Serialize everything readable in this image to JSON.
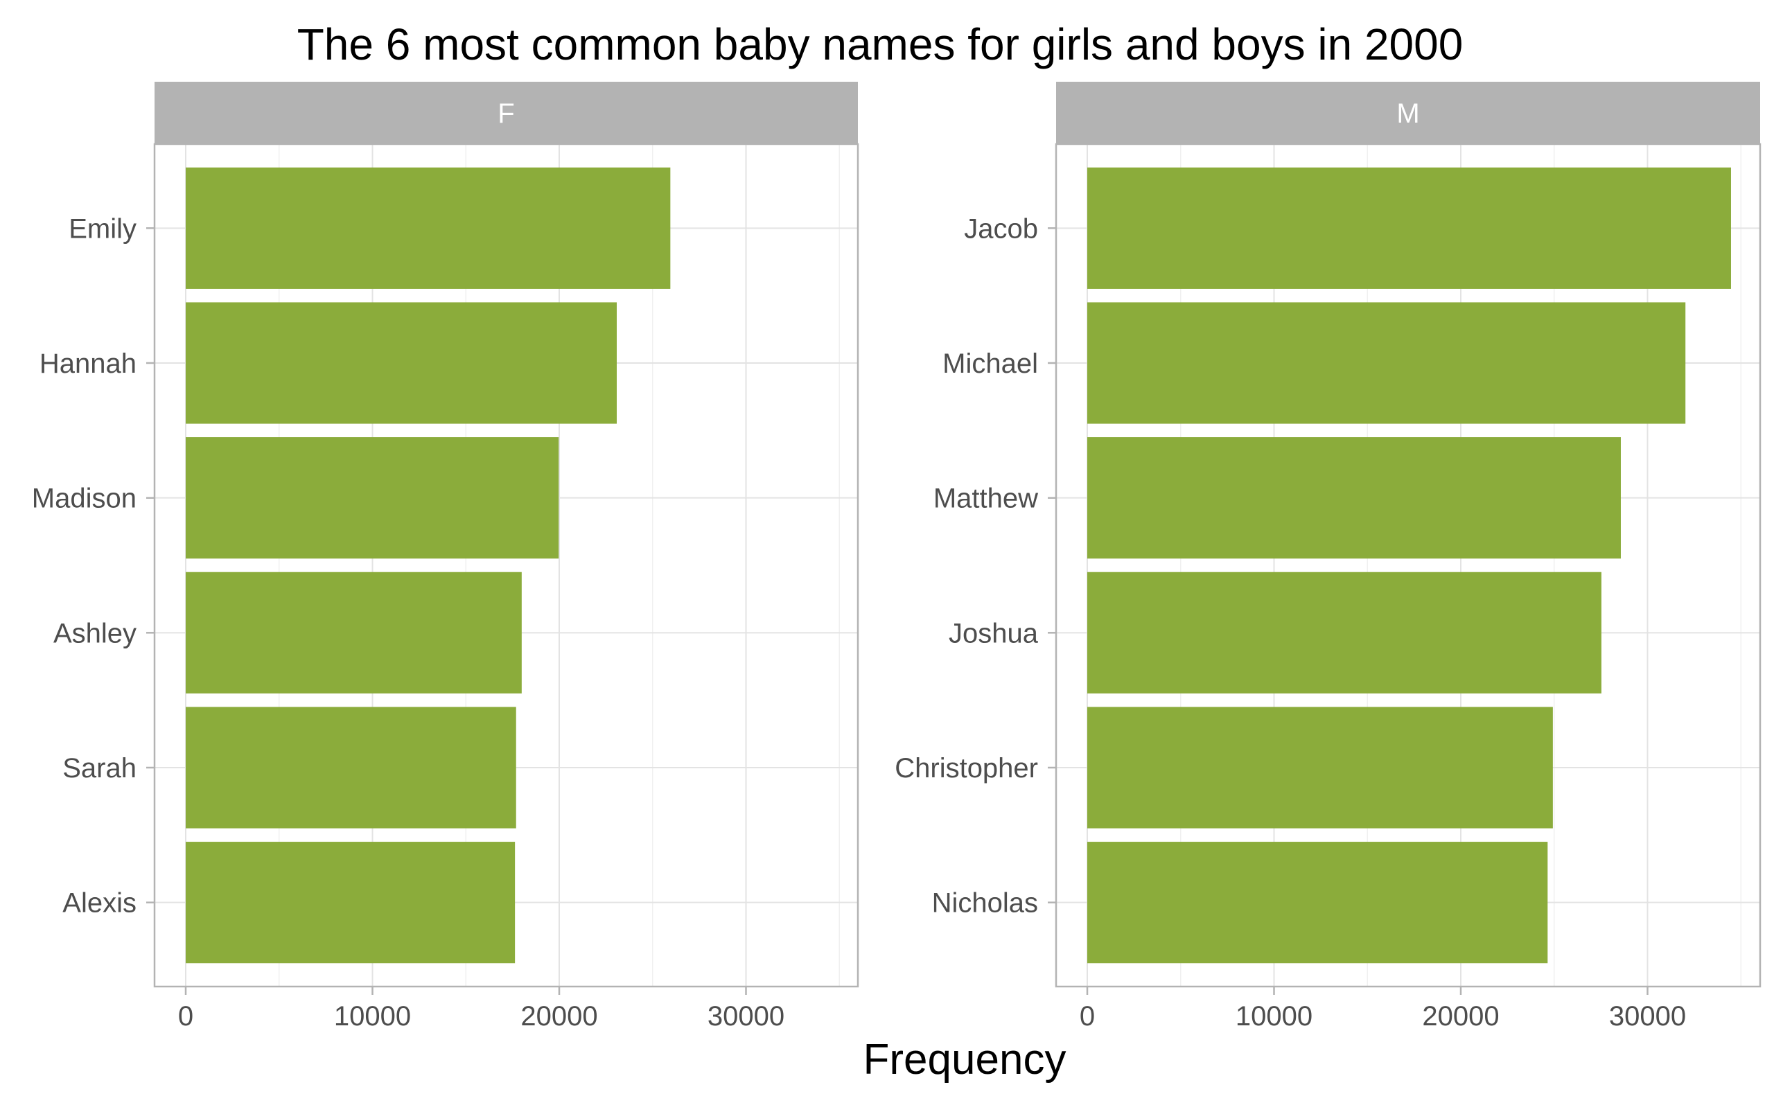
{
  "chart_data": {
    "type": "bar",
    "orientation": "horizontal",
    "title": "The 6 most common baby names for girls and boys in 2000",
    "xlabel": "Frequency",
    "ylabel": "",
    "xlim": [
      0,
      36000
    ],
    "xticks": [
      0,
      10000,
      20000,
      30000
    ],
    "grid": true,
    "bar_color": "#8bac3b",
    "strip_color": "#b3b3b3",
    "panels": [
      {
        "name": "F",
        "categories": [
          "Emily",
          "Hannah",
          "Madison",
          "Ashley",
          "Sarah",
          "Alexis"
        ],
        "values": [
          25950,
          23080,
          19970,
          17990,
          17690,
          17630
        ]
      },
      {
        "name": "M",
        "categories": [
          "Jacob",
          "Michael",
          "Matthew",
          "Joshua",
          "Christopher",
          "Nicholas"
        ],
        "values": [
          34470,
          32030,
          28570,
          27530,
          24930,
          24650
        ]
      }
    ]
  }
}
